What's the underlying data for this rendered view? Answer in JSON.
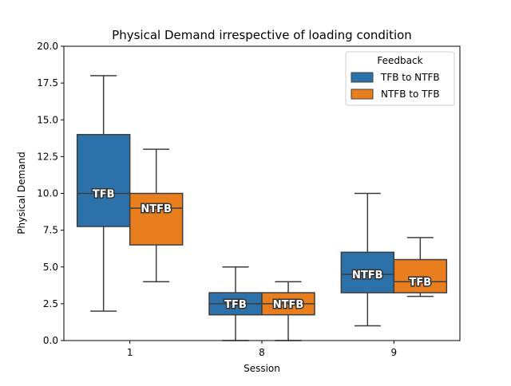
{
  "chart_data": {
    "type": "box",
    "title": "Physical Demand irrespective of loading condition",
    "xlabel": "Session",
    "ylabel": "Physical Demand",
    "ylim": [
      0,
      20
    ],
    "yticks": [
      "0.0",
      "2.5",
      "5.0",
      "7.5",
      "10.0",
      "12.5",
      "15.0",
      "17.5",
      "20.0"
    ],
    "categories": [
      "1",
      "8",
      "9"
    ],
    "legend": {
      "title": "Feedback",
      "placement": "top-right",
      "entries": [
        "TFB to NTFB",
        "NTFB to TFB"
      ]
    },
    "series": [
      {
        "name": "TFB to NTFB",
        "color": "#2c71a9",
        "boxes": [
          {
            "category": "1",
            "min": 2.0,
            "q1": 7.75,
            "median": 10.0,
            "q3": 14.0,
            "max": 18.0,
            "label": "TFB"
          },
          {
            "category": "8",
            "min": 0.0,
            "q1": 1.75,
            "median": 2.5,
            "q3": 3.25,
            "max": 5.0,
            "label": "TFB"
          },
          {
            "category": "9",
            "min": 1.0,
            "q1": 3.25,
            "median": 4.5,
            "q3": 6.0,
            "max": 10.0,
            "label": "NTFB"
          }
        ]
      },
      {
        "name": "NTFB to TFB",
        "color": "#e97e1f",
        "boxes": [
          {
            "category": "1",
            "min": 4.0,
            "q1": 6.5,
            "median": 9.0,
            "q3": 10.0,
            "max": 13.0,
            "label": "NTFB"
          },
          {
            "category": "8",
            "min": 0.0,
            "q1": 1.75,
            "median": 2.5,
            "q3": 3.25,
            "max": 4.0,
            "label": "NTFB"
          },
          {
            "category": "9",
            "min": 3.0,
            "q1": 3.25,
            "median": 4.0,
            "q3": 5.5,
            "max": 7.0,
            "label": "TFB"
          }
        ]
      }
    ]
  }
}
